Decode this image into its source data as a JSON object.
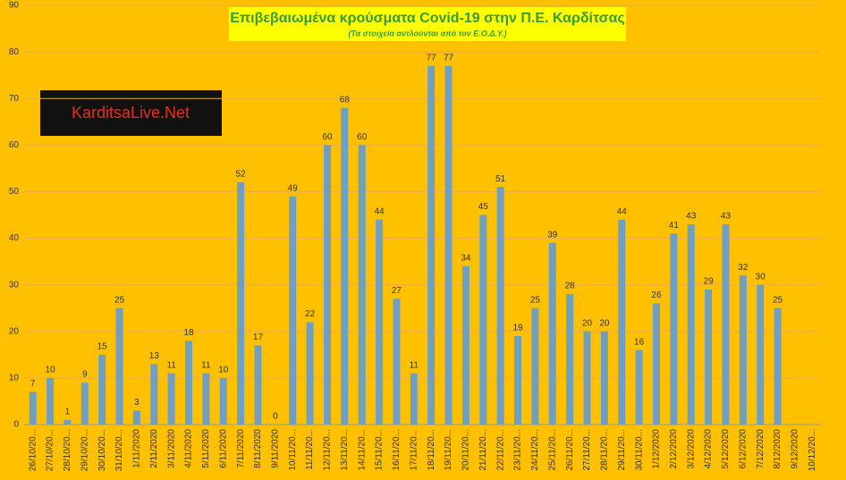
{
  "chart_data": {
    "type": "bar",
    "title": "Επιβεβαιωμένα κρούσματα Covid-19 στην Π.Ε. Καρδίτσας",
    "subtitle": "(Τα στοιχεία αντλούνται από τον Ε.Ο.Δ.Υ.)",
    "logo": "KarditsaLive.Net",
    "categories": [
      "26/10/20...",
      "27/10/20...",
      "28/10/20...",
      "29/10/20...",
      "30/10/20...",
      "31/10/20...",
      "1/11/2020",
      "2/11/2020",
      "3/11/2020",
      "4/11/2020",
      "5/11/2020",
      "6/11/2020",
      "7/11/2020",
      "8/11/2020",
      "9/11/2020",
      "10/11/20...",
      "11/11/20...",
      "12/11/20...",
      "13/11/20...",
      "14/11/20...",
      "15/11/20...",
      "16/11/20...",
      "17/11/20...",
      "18/11/20...",
      "19/11/20...",
      "20/11/20...",
      "21/11/20...",
      "22/11/20...",
      "23/11/20...",
      "24/11/20...",
      "25/11/20...",
      "26/11/20...",
      "27/11/20...",
      "28/11/20...",
      "29/11/20...",
      "30/11/20...",
      "1/12/2020",
      "2/12/2020",
      "3/12/2020",
      "4/12/2020",
      "5/12/2020",
      "6/12/2020",
      "7/12/2020",
      "8/12/2020",
      "9/12/2020",
      "10/12/20..."
    ],
    "values": [
      7,
      10,
      1,
      9,
      15,
      25,
      3,
      13,
      11,
      18,
      11,
      10,
      52,
      17,
      0,
      49,
      22,
      60,
      68,
      60,
      44,
      27,
      11,
      77,
      77,
      34,
      45,
      51,
      19,
      25,
      39,
      28,
      20,
      20,
      44,
      16,
      26,
      41,
      43,
      29,
      43,
      32,
      30,
      25,
      null,
      null
    ],
    "color": "#6f9fc2",
    "ylim": [
      0,
      90
    ],
    "yticks": [
      0,
      10,
      20,
      30,
      40,
      50,
      60,
      70,
      80,
      90
    ],
    "grid": true
  }
}
